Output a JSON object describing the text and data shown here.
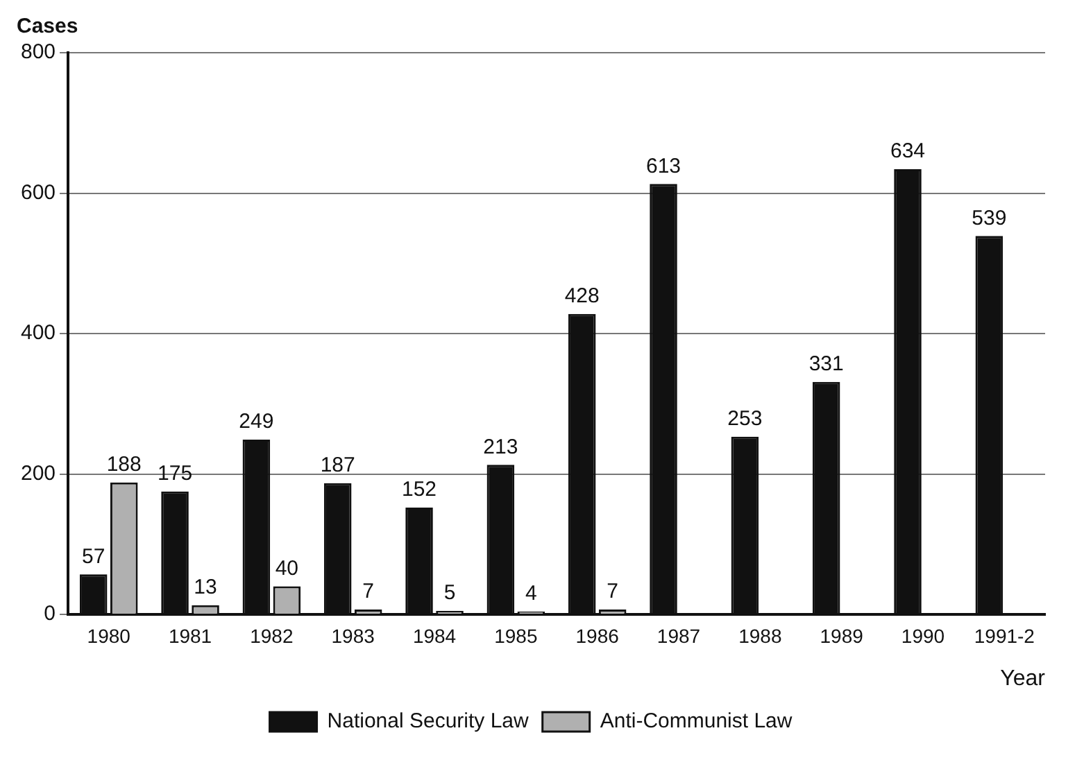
{
  "chart_data": {
    "type": "bar",
    "xlabel": "Year",
    "ylabel": "Cases",
    "categories": [
      "1980",
      "1981",
      "1982",
      "1983",
      "1984",
      "1985",
      "1986",
      "1987",
      "1988",
      "1989",
      "1990",
      "1991-2"
    ],
    "series": [
      {
        "name": "National Security Law",
        "color": "#111111",
        "values": [
          57,
          175,
          249,
          187,
          152,
          213,
          428,
          613,
          253,
          331,
          634,
          539
        ]
      },
      {
        "name": "Anti-Communist Law",
        "color": "#b0b0b0",
        "values": [
          188,
          13,
          40,
          7,
          5,
          4,
          7,
          null,
          null,
          null,
          null,
          null
        ]
      }
    ],
    "ylim": [
      0,
      800
    ],
    "yticks": [
      0,
      200,
      400,
      600,
      800
    ],
    "grid": "y",
    "legend": "bottom",
    "data_labels": true
  }
}
